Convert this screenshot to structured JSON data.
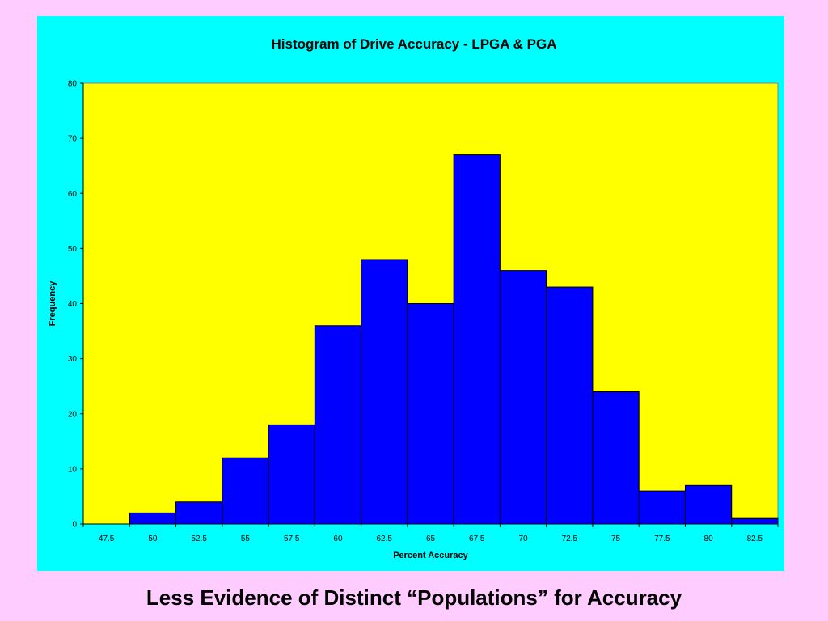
{
  "slide": {
    "caption": "Less Evidence of Distinct “Populations” for Accuracy"
  },
  "colors": {
    "slide_background": "#ffccff",
    "chart_background": "#00ffff",
    "plot_background": "#ffff00",
    "bar_fill": "#0000ff",
    "bar_stroke": "#000000"
  },
  "chart_data": {
    "type": "bar",
    "title": "Histogram of Drive Accuracy - LPGA & PGA",
    "xlabel": "Percent Accuracy",
    "ylabel": "Frequency",
    "categories": [
      "47.5",
      "50",
      "52.5",
      "55",
      "57.5",
      "60",
      "62.5",
      "65",
      "67.5",
      "70",
      "72.5",
      "75",
      "77.5",
      "80",
      "82.5"
    ],
    "values": [
      0,
      2,
      4,
      12,
      18,
      36,
      48,
      40,
      67,
      46,
      43,
      24,
      6,
      7,
      1
    ],
    "ylim": [
      0,
      80
    ],
    "yticks": [
      0,
      10,
      20,
      30,
      40,
      50,
      60,
      70,
      80
    ],
    "grid": false,
    "legend": "none"
  }
}
